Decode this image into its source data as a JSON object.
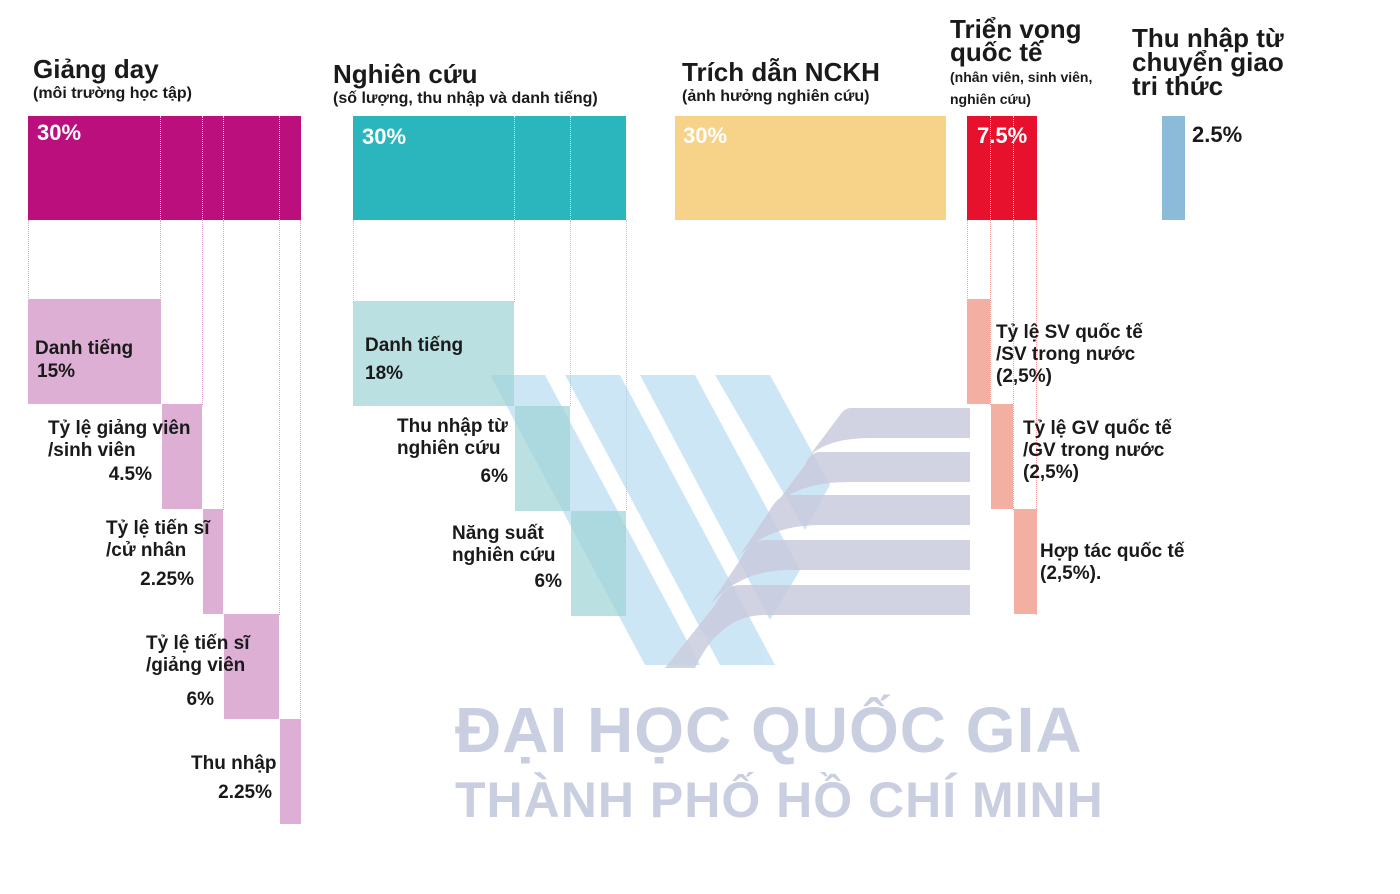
{
  "columns": {
    "teaching": {
      "title": "Giảng day",
      "subtitle": "(môi trường học tập)",
      "weight": "30%",
      "color": "#bb0f7e",
      "sub_color": "#deafd5",
      "items": [
        {
          "label_1": "Danh tiếng",
          "label_2": "",
          "value": "15%"
        },
        {
          "label_1": "Tỷ lệ giảng viên",
          "label_2": "/sinh viên",
          "value": "4.5%"
        },
        {
          "label_1": "Tỷ lệ tiến sĩ",
          "label_2": "/cử nhân",
          "value": "2.25%"
        },
        {
          "label_1": "Tỷ lệ tiến sĩ",
          "label_2": "/giảng viên",
          "value": "6%"
        },
        {
          "label_1": "Thu nhập",
          "label_2": "",
          "value": "2.25%"
        }
      ]
    },
    "research": {
      "title": "Nghiên cứu",
      "subtitle": "(số lượng, thu nhập và danh tiếng)",
      "weight": "30%",
      "color": "#2bb6bd",
      "sub_color": "#b7dee0",
      "items": [
        {
          "label_1": "Danh tiếng",
          "label_2": "",
          "value": "18%"
        },
        {
          "label_1": "Thu nhập từ",
          "label_2": "nghiên cứu",
          "value": "6%"
        },
        {
          "label_1": "Năng suất",
          "label_2": "nghiên cứu",
          "value": "6%"
        }
      ]
    },
    "citations": {
      "title": "Trích dẫn NCKH",
      "subtitle": "(ảnh hưởng nghiên cứu)",
      "weight": "30%",
      "color": "#f6d389"
    },
    "international": {
      "title_1": "Triển vọng",
      "title_2": "quốc tế",
      "subtitle_1": "(nhân viên, sinh viên,",
      "subtitle_2": "nghiên cứu)",
      "weight": "7.5%",
      "color": "#e8112d",
      "sub_color": "#f3b0a2",
      "items": [
        {
          "label_1": "Tỷ lệ SV quốc tế",
          "label_2": "/SV trong nước",
          "label_3": "(2,5%)"
        },
        {
          "label_1": "Tỷ lệ GV quốc tế",
          "label_2": "/GV trong nước",
          "label_3": "(2,5%)"
        },
        {
          "label_1": "Hợp tác quốc tế",
          "label_2": "(2,5%)."
        }
      ]
    },
    "knowledge_transfer": {
      "title_1": "Thu nhập từ",
      "title_2": "chuyển giao",
      "title_3": "tri thức",
      "weight": "2.5%",
      "color": "#8bbbd8"
    }
  },
  "watermark": {
    "line_1": "ĐẠI HỌC QUỐC GIA",
    "line_2": "THÀNH PHỐ HỒ CHÍ MINH"
  }
}
